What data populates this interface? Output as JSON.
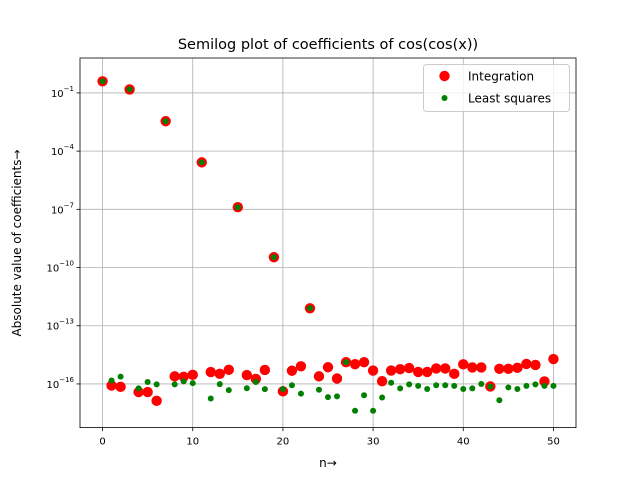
{
  "chart_data": {
    "type": "scatter",
    "title": "Semilog plot of coefficients of cos(cos(x))",
    "xlabel": "n→",
    "ylabel": "Absolute value of coefficients→",
    "yscale": "log",
    "xlim": [
      -2.5,
      52.5
    ],
    "ylim_log10": [
      -18.25,
      0.8
    ],
    "grid": true,
    "legend_position": "top-right",
    "x_ticks": [
      {
        "value": 0,
        "label": "0"
      },
      {
        "value": 10,
        "label": "10"
      },
      {
        "value": 20,
        "label": "20"
      },
      {
        "value": 30,
        "label": "30"
      },
      {
        "value": 40,
        "label": "40"
      },
      {
        "value": 50,
        "label": "50"
      }
    ],
    "y_ticks": [
      {
        "exp": -1,
        "label": "10",
        "sup": "−1"
      },
      {
        "exp": -4,
        "label": "10",
        "sup": "−4"
      },
      {
        "exp": -7,
        "label": "10",
        "sup": "−7"
      },
      {
        "exp": -10,
        "label": "10",
        "sup": "−10"
      },
      {
        "exp": -13,
        "label": "10",
        "sup": "−13"
      },
      {
        "exp": -16,
        "label": "10",
        "sup": "−16"
      }
    ],
    "x": [
      0,
      1,
      2,
      3,
      4,
      5,
      6,
      7,
      8,
      9,
      10,
      11,
      12,
      13,
      14,
      15,
      16,
      17,
      18,
      19,
      20,
      21,
      22,
      23,
      24,
      25,
      26,
      27,
      28,
      29,
      30,
      31,
      32,
      33,
      34,
      35,
      36,
      37,
      38,
      39,
      40,
      41,
      42,
      43,
      44,
      45,
      46,
      47,
      48,
      49,
      50
    ],
    "series": [
      {
        "name": "Integration",
        "color": "#ff0000",
        "marker_size": 5.2,
        "log10_values": [
          -0.4,
          -16.08,
          -16.15,
          -0.82,
          -16.42,
          -16.42,
          -16.87,
          -2.46,
          -15.61,
          -15.63,
          -15.53,
          -4.58,
          -15.39,
          -15.48,
          -15.27,
          -6.89,
          -15.54,
          -15.74,
          -15.28,
          -9.47,
          -16.38,
          -15.32,
          -15.09,
          -12.1,
          -15.61,
          -15.14,
          -15.72,
          -14.88,
          -14.98,
          -14.88,
          -15.31,
          -15.86,
          -15.31,
          -15.24,
          -15.18,
          -15.38,
          -15.38,
          -15.2,
          -15.2,
          -15.48,
          -14.99,
          -15.15,
          -15.15,
          -16.13,
          -15.22,
          -15.22,
          -15.17,
          -14.97,
          -15.02,
          -15.87,
          -14.72
        ]
      },
      {
        "name": "Least squares",
        "color": "#008000",
        "marker_size": 3.0,
        "log10_values": [
          -0.4,
          -15.82,
          -15.62,
          -0.82,
          -16.23,
          -15.9,
          -16.02,
          -2.46,
          -16.02,
          -15.87,
          -15.96,
          -4.58,
          -16.75,
          -16.01,
          -16.32,
          -6.89,
          -16.22,
          -15.9,
          -16.27,
          -9.47,
          -16.26,
          -16.07,
          -16.5,
          -12.1,
          -16.3,
          -16.68,
          -16.64,
          -14.88,
          -17.38,
          -16.58,
          -17.38,
          -16.7,
          -15.94,
          -16.23,
          -16.02,
          -16.1,
          -16.26,
          -16.07,
          -16.07,
          -16.1,
          -16.26,
          -16.23,
          -16.0,
          -16.13,
          -16.84,
          -16.18,
          -16.26,
          -16.1,
          -16.02,
          -16.1,
          -16.1
        ]
      }
    ]
  }
}
